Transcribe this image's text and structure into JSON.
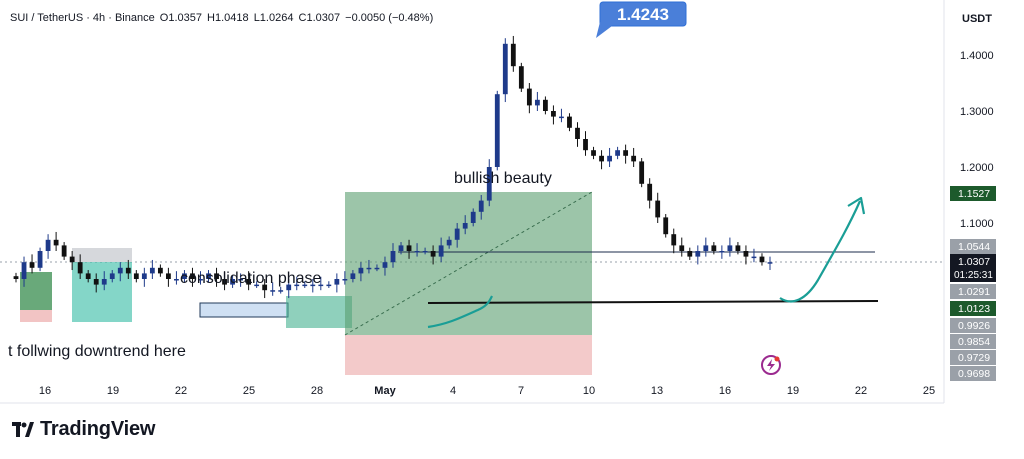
{
  "header": {
    "symbol": "SUI / TetherUS · 4h · Binance",
    "open": "O1.0357",
    "high": "H1.0418",
    "low": "L1.0264",
    "close": "C1.0307",
    "change": "−0.0050 (−0.48%)"
  },
  "currency_label": "USDT",
  "brand": {
    "name": "TradingView"
  },
  "colors": {
    "up": "#1e3a8a",
    "down": "#111111",
    "accent_blue": "#2f6fd6",
    "green_zone": "#5a9e6f",
    "red_zone": "#e7a3a3",
    "teal": "#1a9e96",
    "resistance_line": "#1b2b4b"
  },
  "annotations": {
    "bullish": "bullish beauty",
    "consolidation": "consolidation phase",
    "downtrend": "t follwing downtrend here"
  },
  "chart_data": {
    "type": "candlestick",
    "symbol": "SUI / TetherUS",
    "interval": "4h",
    "exchange": "Binance",
    "ohlc_last": {
      "open": 1.0357,
      "high": 1.0418,
      "low": 1.0264,
      "close": 1.0307,
      "change": -0.005,
      "change_pct": -0.48
    },
    "x_ticks": [
      "16",
      "19",
      "22",
      "25",
      "28",
      "May",
      "4",
      "7",
      "10",
      "13",
      "16",
      "19",
      "22",
      "25"
    ],
    "y_ticks": [
      "1.4000",
      "1.3000",
      "1.2000",
      "1.1000"
    ],
    "ylim": [
      0.9698,
      1.4243
    ],
    "price_labels": [
      {
        "text": "1.1527",
        "value": 1.1527,
        "kind": "green"
      },
      {
        "text": "1.0544",
        "value": 1.0544,
        "kind": "grey"
      },
      {
        "text": "1.0307",
        "value": 1.0307,
        "kind": "current"
      },
      {
        "text": "1.0291",
        "value": 1.0291,
        "kind": "grey"
      },
      {
        "text": "1.0123",
        "value": 1.0123,
        "kind": "green"
      },
      {
        "text": "0.9926",
        "value": 0.9926,
        "kind": "grey"
      },
      {
        "text": "0.9854",
        "value": 0.9854,
        "kind": "grey"
      },
      {
        "text": "0.9729",
        "value": 0.9729,
        "kind": "grey"
      },
      {
        "text": "0.9698",
        "value": 0.9698,
        "kind": "grey"
      }
    ],
    "countdown": "01:25:31",
    "peak_label": "1.4243",
    "peak_value": 1.4243,
    "levels": {
      "resistance": 1.0544,
      "support": 1.0123
    },
    "closes": [
      1.0,
      1.03,
      1.02,
      1.05,
      1.07,
      1.06,
      1.04,
      1.03,
      1.01,
      1.0,
      0.99,
      1.0,
      1.01,
      1.02,
      1.01,
      1.0,
      1.01,
      1.02,
      1.01,
      1.0,
      1.0,
      1.01,
      1.0,
      1.0,
      1.01,
      1.0,
      0.99,
      1.0,
      1.0,
      0.99,
      0.99,
      0.98,
      0.98,
      0.98,
      0.99,
      0.99,
      0.99,
      0.99,
      0.99,
      0.99,
      1.0,
      1.0,
      1.01,
      1.02,
      1.02,
      1.02,
      1.03,
      1.05,
      1.06,
      1.05,
      1.05,
      1.05,
      1.04,
      1.06,
      1.07,
      1.09,
      1.1,
      1.12,
      1.14,
      1.2,
      1.33,
      1.42,
      1.38,
      1.34,
      1.31,
      1.32,
      1.3,
      1.29,
      1.29,
      1.27,
      1.25,
      1.23,
      1.22,
      1.21,
      1.22,
      1.23,
      1.22,
      1.21,
      1.17,
      1.14,
      1.11,
      1.08,
      1.06,
      1.05,
      1.04,
      1.05,
      1.06,
      1.05,
      1.05,
      1.06,
      1.05,
      1.04,
      1.04,
      1.03,
      1.03
    ]
  }
}
